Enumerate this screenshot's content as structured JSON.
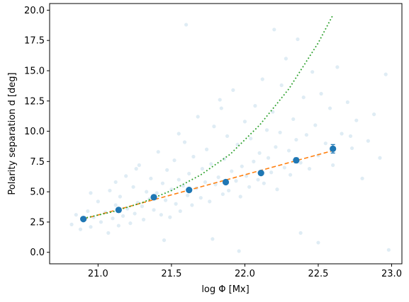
{
  "chart_data": {
    "type": "scatter",
    "xlabel": "log Φ [Mx]",
    "ylabel": "Polarity separation d [deg]",
    "xlim": [
      20.67,
      23.07
    ],
    "ylim": [
      -0.95,
      20.55
    ],
    "xticks": [
      "21.0",
      "21.5",
      "22.0",
      "22.5",
      "23.0"
    ],
    "yticks": [
      "0.0",
      "2.5",
      "5.0",
      "7.5",
      "10.0",
      "12.5",
      "15.0",
      "17.5",
      "20.0"
    ],
    "grid": false,
    "colors": {
      "scatter": "#1f77b4",
      "binned": "#1f77b4",
      "linear_fit": "#ff7f0e",
      "power_fit": "#2ca02c"
    },
    "binned_means": {
      "x": [
        20.9,
        21.14,
        21.38,
        21.62,
        21.87,
        22.11,
        22.35,
        22.6
      ],
      "y": [
        2.75,
        3.5,
        4.55,
        5.15,
        5.8,
        6.55,
        7.6,
        8.55
      ],
      "yerr": [
        0.1,
        0.1,
        0.1,
        0.1,
        0.12,
        0.15,
        0.2,
        0.35
      ]
    },
    "linear_fit": {
      "x": [
        20.9,
        22.6
      ],
      "y": [
        2.75,
        8.4
      ]
    },
    "power_fit": {
      "x": [
        20.9,
        21.1,
        21.3,
        21.5,
        21.7,
        21.9,
        22.1,
        22.3,
        22.5,
        22.6
      ],
      "y": [
        2.8,
        3.35,
        4.1,
        5.1,
        6.4,
        8.1,
        10.5,
        13.5,
        17.3,
        19.6
      ]
    },
    "scatter_points": [
      [
        20.82,
        2.3
      ],
      [
        20.85,
        3.1
      ],
      [
        20.88,
        1.9
      ],
      [
        20.9,
        2.6
      ],
      [
        20.93,
        3.4
      ],
      [
        20.95,
        2.1
      ],
      [
        20.97,
        2.9
      ],
      [
        21.0,
        4.2
      ],
      [
        21.02,
        2.5
      ],
      [
        21.05,
        3.3
      ],
      [
        21.07,
        1.6
      ],
      [
        21.08,
        5.1
      ],
      [
        21.1,
        2.8
      ],
      [
        21.12,
        3.9
      ],
      [
        21.14,
        2.2
      ],
      [
        21.15,
        4.6
      ],
      [
        21.17,
        3.0
      ],
      [
        21.19,
        6.3
      ],
      [
        21.2,
        3.6
      ],
      [
        21.22,
        2.4
      ],
      [
        21.24,
        5.4
      ],
      [
        21.25,
        3.2
      ],
      [
        21.27,
        4.1
      ],
      [
        21.28,
        7.2
      ],
      [
        21.3,
        3.8
      ],
      [
        21.31,
        2.7
      ],
      [
        21.33,
        5.0
      ],
      [
        21.35,
        4.4
      ],
      [
        21.36,
        6.1
      ],
      [
        21.38,
        3.5
      ],
      [
        21.4,
        4.9
      ],
      [
        21.41,
        8.3
      ],
      [
        21.43,
        3.1
      ],
      [
        21.44,
        5.7
      ],
      [
        21.46,
        4.3
      ],
      [
        21.47,
        6.8
      ],
      [
        21.49,
        2.9
      ],
      [
        21.5,
        5.2
      ],
      [
        21.52,
        7.6
      ],
      [
        21.53,
        4.0
      ],
      [
        21.55,
        6.0
      ],
      [
        21.56,
        3.4
      ],
      [
        21.58,
        5.5
      ],
      [
        21.59,
        9.1
      ],
      [
        21.61,
        4.7
      ],
      [
        21.62,
        6.5
      ],
      [
        21.64,
        3.9
      ],
      [
        21.65,
        7.9
      ],
      [
        21.67,
        5.3
      ],
      [
        21.68,
        11.2
      ],
      [
        21.7,
        4.5
      ],
      [
        21.71,
        6.9
      ],
      [
        21.73,
        5.8
      ],
      [
        21.74,
        8.5
      ],
      [
        21.76,
        4.2
      ],
      [
        21.77,
        7.3
      ],
      [
        21.79,
        10.4
      ],
      [
        21.8,
        5.6
      ],
      [
        21.82,
        6.2
      ],
      [
        21.83,
        12.6
      ],
      [
        21.85,
        4.8
      ],
      [
        21.86,
        7.7
      ],
      [
        21.88,
        9.6
      ],
      [
        21.89,
        5.1
      ],
      [
        21.91,
        6.7
      ],
      [
        21.92,
        13.4
      ],
      [
        21.94,
        5.9
      ],
      [
        21.95,
        8.9
      ],
      [
        21.97,
        4.6
      ],
      [
        21.98,
        7.1
      ],
      [
        22.0,
        10.8
      ],
      [
        22.01,
        6.3
      ],
      [
        22.03,
        5.4
      ],
      [
        22.04,
        9.4
      ],
      [
        22.06,
        7.5
      ],
      [
        22.07,
        12.1
      ],
      [
        22.09,
        6.0
      ],
      [
        22.1,
        8.2
      ],
      [
        22.12,
        14.3
      ],
      [
        22.13,
        5.7
      ],
      [
        22.15,
        10.1
      ],
      [
        22.16,
        7.8
      ],
      [
        22.18,
        6.6
      ],
      [
        22.19,
        11.6
      ],
      [
        22.21,
        8.7
      ],
      [
        22.22,
        5.2
      ],
      [
        22.24,
        9.9
      ],
      [
        22.25,
        13.8
      ],
      [
        22.27,
        7.0
      ],
      [
        22.28,
        16.0
      ],
      [
        22.3,
        8.4
      ],
      [
        22.31,
        6.4
      ],
      [
        22.33,
        11.0
      ],
      [
        22.35,
        9.3
      ],
      [
        22.36,
        17.6
      ],
      [
        22.38,
        7.4
      ],
      [
        22.4,
        12.8
      ],
      [
        22.42,
        9.7
      ],
      [
        22.44,
        6.9
      ],
      [
        22.46,
        14.9
      ],
      [
        22.48,
        10.5
      ],
      [
        22.5,
        8.0
      ],
      [
        22.52,
        13.1
      ],
      [
        22.55,
        9.0
      ],
      [
        22.58,
        11.9
      ],
      [
        22.6,
        7.2
      ],
      [
        22.63,
        15.3
      ],
      [
        22.66,
        9.8
      ],
      [
        22.7,
        12.4
      ],
      [
        22.73,
        8.6
      ],
      [
        22.76,
        10.9
      ],
      [
        22.8,
        6.1
      ],
      [
        22.84,
        9.2
      ],
      [
        22.88,
        11.4
      ],
      [
        22.92,
        7.8
      ],
      [
        22.96,
        14.7
      ],
      [
        22.98,
        0.2
      ],
      [
        21.78,
        1.1
      ],
      [
        21.96,
        0.1
      ],
      [
        22.38,
        1.6
      ],
      [
        22.5,
        0.8
      ],
      [
        21.45,
        1.0
      ],
      [
        21.6,
        18.8
      ],
      [
        22.2,
        18.4
      ],
      [
        22.72,
        9.6
      ],
      [
        21.26,
        6.9
      ],
      [
        21.12,
        5.8
      ],
      [
        20.95,
        4.9
      ],
      [
        21.55,
        9.8
      ],
      [
        21.84,
        11.9
      ]
    ]
  }
}
